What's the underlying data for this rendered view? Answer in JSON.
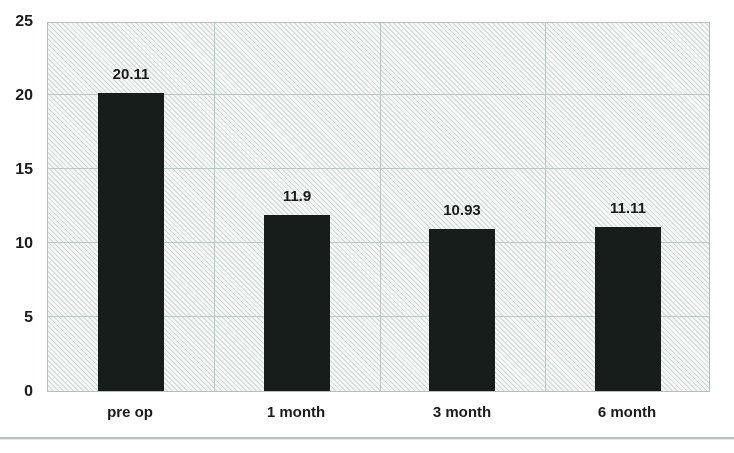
{
  "chart_data": {
    "type": "bar",
    "categories": [
      "pre op",
      "1 month",
      "3 month",
      "6 month"
    ],
    "values": [
      20.11,
      11.9,
      10.93,
      11.11
    ],
    "value_labels": [
      "20.11",
      "11.9",
      "10.93",
      "11.11"
    ],
    "title": "",
    "xlabel": "",
    "ylabel": "",
    "ylim": [
      0,
      25
    ],
    "yticks": [
      0,
      5,
      10,
      15,
      20,
      25
    ],
    "ytick_labels": [
      "0",
      "5",
      "10",
      "15",
      "20",
      "25"
    ],
    "grid": true,
    "legend": false
  },
  "colors": {
    "bar_fill": "#161d1a",
    "gridline": "#b9c9c3",
    "plot_border": "#aec1ba",
    "text": "#1b1b1b",
    "bottom_rule": "#b3c4be"
  }
}
